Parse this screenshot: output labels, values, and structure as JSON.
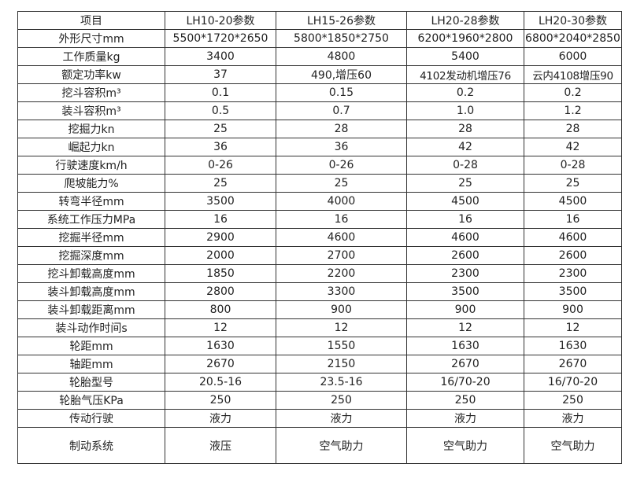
{
  "table": {
    "headers": [
      "项目",
      "LH10-20参数",
      "LH15-26参数",
      "LH20-28参数",
      "LH20-30参数"
    ],
    "rows": [
      {
        "label": "外形尺寸mm",
        "values": [
          "5500*1720*2650",
          "5800*1850*2750",
          "6200*1960*2800",
          "6800*2040*2850"
        ]
      },
      {
        "label": "工作质量kg",
        "values": [
          "3400",
          "4800",
          "5400",
          "6000"
        ]
      },
      {
        "label": "额定功率kw",
        "values": [
          "37",
          "490,增压60",
          "4102发动机增压76",
          "云内4108增压90"
        ]
      },
      {
        "label": "挖斗容积m³",
        "values": [
          "0.1",
          "0.15",
          "0.2",
          "0.2"
        ]
      },
      {
        "label": "装斗容积m³",
        "values": [
          "0.5",
          "0.7",
          "1.0",
          "1.2"
        ]
      },
      {
        "label": "挖掘力kn",
        "values": [
          "25",
          "28",
          "28",
          "28"
        ]
      },
      {
        "label": "崛起力kn",
        "values": [
          "36",
          "36",
          "42",
          "42"
        ]
      },
      {
        "label": "行驶速度km/h",
        "values": [
          "0-26",
          "0-26",
          "0-28",
          "0-28"
        ]
      },
      {
        "label": "爬坡能力%",
        "values": [
          "25",
          "25",
          "25",
          "25"
        ]
      },
      {
        "label": "转弯半径mm",
        "values": [
          "3500",
          "4000",
          "4500",
          "4500"
        ]
      },
      {
        "label": "系统工作压力MPa",
        "values": [
          "16",
          "16",
          "16",
          "16"
        ]
      },
      {
        "label": "挖掘半径mm",
        "values": [
          "2900",
          "4600",
          "4600",
          "4600"
        ]
      },
      {
        "label": "挖掘深度mm",
        "values": [
          "2000",
          "2700",
          "2600",
          "2600"
        ]
      },
      {
        "label": "挖斗卸载高度mm",
        "values": [
          "1850",
          "2200",
          "2300",
          "2300"
        ]
      },
      {
        "label": "装斗卸载高度mm",
        "values": [
          "2800",
          "3300",
          "3500",
          "3500"
        ]
      },
      {
        "label": "装斗卸载距离mm",
        "values": [
          "800",
          "900",
          "900",
          "900"
        ]
      },
      {
        "label": "装斗动作时间s",
        "values": [
          "12",
          "12",
          "12",
          "12"
        ]
      },
      {
        "label": "轮距mm",
        "values": [
          "1630",
          "1550",
          "1630",
          "1630"
        ]
      },
      {
        "label": "轴距mm",
        "values": [
          "2670",
          "2150",
          "2670",
          "2670"
        ]
      },
      {
        "label": "轮胎型号",
        "values": [
          "20.5-16",
          "23.5-16",
          "16/70-20",
          "16/70-20"
        ]
      },
      {
        "label": "轮胎气压KPa",
        "values": [
          "250",
          "250",
          "250",
          "250"
        ]
      },
      {
        "label": "传动行驶",
        "values": [
          "液力",
          "液力",
          "液力",
          "液力"
        ]
      },
      {
        "label": "制动系统",
        "values": [
          "液压",
          "空气助力",
          "空气助力",
          "空气助力"
        ]
      }
    ]
  }
}
